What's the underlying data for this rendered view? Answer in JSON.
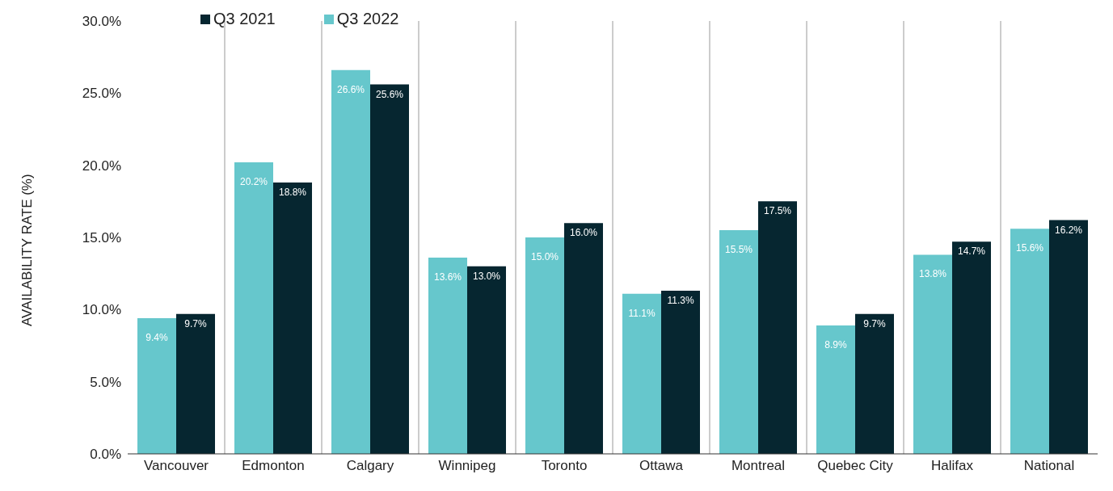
{
  "chart_data": {
    "type": "bar",
    "ylabel": "AVAILABILITY RATE (%)",
    "categories": [
      "Vancouver",
      "Edmonton",
      "Calgary",
      "Winnipeg",
      "Toronto",
      "Ottawa",
      "Montreal",
      "Quebec City",
      "Halifax",
      "National"
    ],
    "series": [
      {
        "name": "Q3 2022",
        "color": "#66c7cc",
        "values": [
          9.4,
          20.2,
          26.6,
          13.6,
          15.0,
          11.1,
          15.5,
          8.9,
          13.8,
          15.6
        ],
        "value_labels": [
          "9.4%",
          "20.2%",
          "26.6%",
          "13.6%",
          "15.0%",
          "11.1%",
          "15.5%",
          "8.9%",
          "13.8%",
          "15.6%"
        ]
      },
      {
        "name": "Q3 2021",
        "color": "#062630",
        "values": [
          9.7,
          18.8,
          25.6,
          13.0,
          16.0,
          11.3,
          17.5,
          9.7,
          14.7,
          16.2
        ],
        "value_labels": [
          "9.7%",
          "18.8%",
          "25.6%",
          "13.0%",
          "16.0%",
          "11.3%",
          "17.5%",
          "9.7%",
          "14.7%",
          "16.2%"
        ]
      }
    ],
    "ylim": [
      0,
      30
    ],
    "yticks": [
      {
        "value": 0,
        "label": "0.0%"
      },
      {
        "value": 5,
        "label": "5.0%"
      },
      {
        "value": 10,
        "label": "10.0%"
      },
      {
        "value": 15,
        "label": "15.0%"
      },
      {
        "value": 20,
        "label": "20.0%"
      },
      {
        "value": 25,
        "label": "25.0%"
      },
      {
        "value": 30,
        "label": "30.0%"
      }
    ],
    "grid": "x",
    "legend": "top left"
  }
}
